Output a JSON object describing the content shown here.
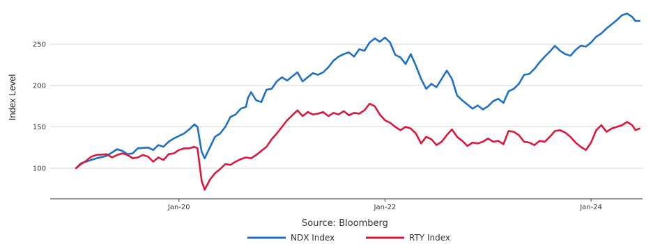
{
  "chart_data": {
    "type": "line",
    "ylabel": "Index Level",
    "xlabel": "Source: Bloomberg",
    "y_ticks": [
      100,
      150,
      200,
      250
    ],
    "x_ticks": [
      {
        "label": "Jan-20",
        "t": 2020.0
      },
      {
        "label": "Jan-22",
        "t": 2022.0
      },
      {
        "label": "Jan-24",
        "t": 2024.0
      }
    ],
    "xlim": [
      2018.75,
      2024.5
    ],
    "ylim": [
      63,
      295
    ],
    "grid": "horizontal",
    "legend_position": "bottom",
    "series": [
      {
        "name": "NDX Index",
        "color": "#1f6fc5",
        "points": [
          [
            2019.0,
            100
          ],
          [
            2019.05,
            106
          ],
          [
            2019.1,
            108
          ],
          [
            2019.2,
            112
          ],
          [
            2019.3,
            115
          ],
          [
            2019.35,
            119
          ],
          [
            2019.4,
            123
          ],
          [
            2019.45,
            121
          ],
          [
            2019.5,
            117
          ],
          [
            2019.55,
            118
          ],
          [
            2019.6,
            124
          ],
          [
            2019.7,
            125
          ],
          [
            2019.75,
            122
          ],
          [
            2019.8,
            128
          ],
          [
            2019.85,
            126
          ],
          [
            2019.9,
            132
          ],
          [
            2019.95,
            136
          ],
          [
            2020.0,
            139
          ],
          [
            2020.05,
            142
          ],
          [
            2020.1,
            147
          ],
          [
            2020.15,
            153
          ],
          [
            2020.18,
            150
          ],
          [
            2020.22,
            120
          ],
          [
            2020.25,
            112
          ],
          [
            2020.3,
            125
          ],
          [
            2020.35,
            138
          ],
          [
            2020.4,
            142
          ],
          [
            2020.45,
            150
          ],
          [
            2020.5,
            162
          ],
          [
            2020.55,
            165
          ],
          [
            2020.6,
            172
          ],
          [
            2020.65,
            174
          ],
          [
            2020.67,
            185
          ],
          [
            2020.7,
            192
          ],
          [
            2020.75,
            182
          ],
          [
            2020.8,
            180
          ],
          [
            2020.85,
            195
          ],
          [
            2020.9,
            196
          ],
          [
            2020.95,
            205
          ],
          [
            2021.0,
            210
          ],
          [
            2021.05,
            206
          ],
          [
            2021.1,
            211
          ],
          [
            2021.15,
            216
          ],
          [
            2021.2,
            205
          ],
          [
            2021.25,
            210
          ],
          [
            2021.3,
            215
          ],
          [
            2021.35,
            213
          ],
          [
            2021.4,
            216
          ],
          [
            2021.45,
            222
          ],
          [
            2021.5,
            230
          ],
          [
            2021.55,
            235
          ],
          [
            2021.6,
            238
          ],
          [
            2021.65,
            240
          ],
          [
            2021.7,
            235
          ],
          [
            2021.75,
            244
          ],
          [
            2021.8,
            242
          ],
          [
            2021.85,
            252
          ],
          [
            2021.9,
            257
          ],
          [
            2021.95,
            253
          ],
          [
            2022.0,
            258
          ],
          [
            2022.05,
            252
          ],
          [
            2022.1,
            237
          ],
          [
            2022.15,
            234
          ],
          [
            2022.2,
            226
          ],
          [
            2022.25,
            238
          ],
          [
            2022.3,
            224
          ],
          [
            2022.35,
            208
          ],
          [
            2022.4,
            196
          ],
          [
            2022.45,
            202
          ],
          [
            2022.5,
            198
          ],
          [
            2022.55,
            208
          ],
          [
            2022.6,
            218
          ],
          [
            2022.65,
            208
          ],
          [
            2022.7,
            188
          ],
          [
            2022.75,
            182
          ],
          [
            2022.8,
            177
          ],
          [
            2022.85,
            172
          ],
          [
            2022.9,
            176
          ],
          [
            2022.95,
            171
          ],
          [
            2023.0,
            175
          ],
          [
            2023.05,
            181
          ],
          [
            2023.1,
            184
          ],
          [
            2023.15,
            179
          ],
          [
            2023.2,
            193
          ],
          [
            2023.25,
            196
          ],
          [
            2023.3,
            202
          ],
          [
            2023.35,
            213
          ],
          [
            2023.4,
            214
          ],
          [
            2023.45,
            220
          ],
          [
            2023.5,
            228
          ],
          [
            2023.55,
            235
          ],
          [
            2023.6,
            241
          ],
          [
            2023.65,
            248
          ],
          [
            2023.7,
            242
          ],
          [
            2023.75,
            238
          ],
          [
            2023.8,
            236
          ],
          [
            2023.85,
            243
          ],
          [
            2023.9,
            248
          ],
          [
            2023.95,
            247
          ],
          [
            2024.0,
            252
          ],
          [
            2024.05,
            259
          ],
          [
            2024.1,
            263
          ],
          [
            2024.15,
            269
          ],
          [
            2024.2,
            274
          ],
          [
            2024.25,
            279
          ],
          [
            2024.3,
            285
          ],
          [
            2024.35,
            287
          ],
          [
            2024.4,
            283
          ],
          [
            2024.43,
            278
          ],
          [
            2024.47,
            278
          ]
        ]
      },
      {
        "name": "RTY Index",
        "color": "#d8193b",
        "points": [
          [
            2019.0,
            100
          ],
          [
            2019.05,
            105
          ],
          [
            2019.1,
            109
          ],
          [
            2019.15,
            114
          ],
          [
            2019.2,
            116
          ],
          [
            2019.3,
            117
          ],
          [
            2019.35,
            113
          ],
          [
            2019.4,
            116
          ],
          [
            2019.45,
            118
          ],
          [
            2019.5,
            116
          ],
          [
            2019.55,
            112
          ],
          [
            2019.6,
            113
          ],
          [
            2019.65,
            116
          ],
          [
            2019.7,
            114
          ],
          [
            2019.75,
            108
          ],
          [
            2019.8,
            113
          ],
          [
            2019.85,
            110
          ],
          [
            2019.9,
            117
          ],
          [
            2019.95,
            118
          ],
          [
            2020.0,
            122
          ],
          [
            2020.05,
            124
          ],
          [
            2020.1,
            124
          ],
          [
            2020.15,
            126
          ],
          [
            2020.18,
            124
          ],
          [
            2020.22,
            85
          ],
          [
            2020.25,
            74
          ],
          [
            2020.3,
            86
          ],
          [
            2020.35,
            94
          ],
          [
            2020.4,
            99
          ],
          [
            2020.45,
            105
          ],
          [
            2020.5,
            104
          ],
          [
            2020.55,
            108
          ],
          [
            2020.6,
            111
          ],
          [
            2020.65,
            113
          ],
          [
            2020.7,
            112
          ],
          [
            2020.75,
            116
          ],
          [
            2020.8,
            121
          ],
          [
            2020.85,
            126
          ],
          [
            2020.9,
            135
          ],
          [
            2020.95,
            142
          ],
          [
            2021.0,
            150
          ],
          [
            2021.05,
            158
          ],
          [
            2021.1,
            164
          ],
          [
            2021.15,
            170
          ],
          [
            2021.2,
            163
          ],
          [
            2021.25,
            168
          ],
          [
            2021.3,
            165
          ],
          [
            2021.35,
            166
          ],
          [
            2021.4,
            168
          ],
          [
            2021.45,
            163
          ],
          [
            2021.5,
            167
          ],
          [
            2021.55,
            165
          ],
          [
            2021.6,
            169
          ],
          [
            2021.65,
            164
          ],
          [
            2021.7,
            167
          ],
          [
            2021.75,
            166
          ],
          [
            2021.8,
            170
          ],
          [
            2021.85,
            178
          ],
          [
            2021.9,
            175
          ],
          [
            2021.95,
            165
          ],
          [
            2022.0,
            158
          ],
          [
            2022.05,
            155
          ],
          [
            2022.1,
            150
          ],
          [
            2022.15,
            146
          ],
          [
            2022.2,
            150
          ],
          [
            2022.25,
            148
          ],
          [
            2022.3,
            142
          ],
          [
            2022.35,
            130
          ],
          [
            2022.4,
            138
          ],
          [
            2022.45,
            135
          ],
          [
            2022.5,
            128
          ],
          [
            2022.55,
            132
          ],
          [
            2022.6,
            140
          ],
          [
            2022.65,
            147
          ],
          [
            2022.7,
            138
          ],
          [
            2022.75,
            133
          ],
          [
            2022.8,
            127
          ],
          [
            2022.85,
            131
          ],
          [
            2022.9,
            130
          ],
          [
            2022.95,
            132
          ],
          [
            2023.0,
            136
          ],
          [
            2023.05,
            132
          ],
          [
            2023.1,
            133
          ],
          [
            2023.15,
            129
          ],
          [
            2023.2,
            145
          ],
          [
            2023.25,
            144
          ],
          [
            2023.3,
            140
          ],
          [
            2023.35,
            132
          ],
          [
            2023.4,
            131
          ],
          [
            2023.45,
            128
          ],
          [
            2023.5,
            133
          ],
          [
            2023.55,
            132
          ],
          [
            2023.6,
            138
          ],
          [
            2023.65,
            145
          ],
          [
            2023.7,
            146
          ],
          [
            2023.75,
            143
          ],
          [
            2023.8,
            138
          ],
          [
            2023.85,
            131
          ],
          [
            2023.9,
            126
          ],
          [
            2023.95,
            122
          ],
          [
            2024.0,
            131
          ],
          [
            2024.05,
            146
          ],
          [
            2024.1,
            152
          ],
          [
            2024.15,
            144
          ],
          [
            2024.2,
            148
          ],
          [
            2024.25,
            150
          ],
          [
            2024.3,
            152
          ],
          [
            2024.35,
            156
          ],
          [
            2024.4,
            152
          ],
          [
            2024.43,
            146
          ],
          [
            2024.47,
            148
          ]
        ]
      }
    ]
  }
}
